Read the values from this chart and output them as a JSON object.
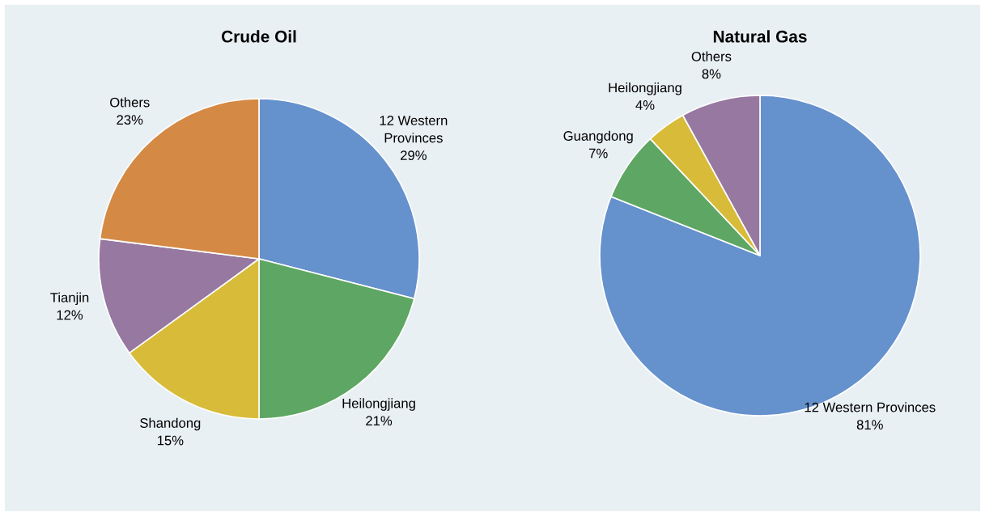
{
  "chart_data": [
    {
      "type": "pie",
      "title": "Crude Oil",
      "categories": [
        "12 Western\nProvinces",
        "Heilongjiang",
        "Shandong",
        "Tianjin",
        "Others"
      ],
      "values": [
        29,
        21,
        15,
        12,
        23
      ],
      "value_labels": [
        "29%",
        "21%",
        "15%",
        "12%",
        "23%"
      ],
      "colors": [
        "#6591cd",
        "#5ea663",
        "#d8bb38",
        "#9678a0",
        "#d48a45"
      ]
    },
    {
      "type": "pie",
      "title": "Natural Gas",
      "categories": [
        "12 Western Provinces",
        "Guangdong",
        "Heilongjiang",
        "Others"
      ],
      "values": [
        81,
        7,
        4,
        8
      ],
      "value_labels": [
        "81%",
        "7%",
        "4%",
        "8%"
      ],
      "colors": [
        "#6591cd",
        "#5ea663",
        "#d8bb38",
        "#9678a0"
      ]
    }
  ]
}
